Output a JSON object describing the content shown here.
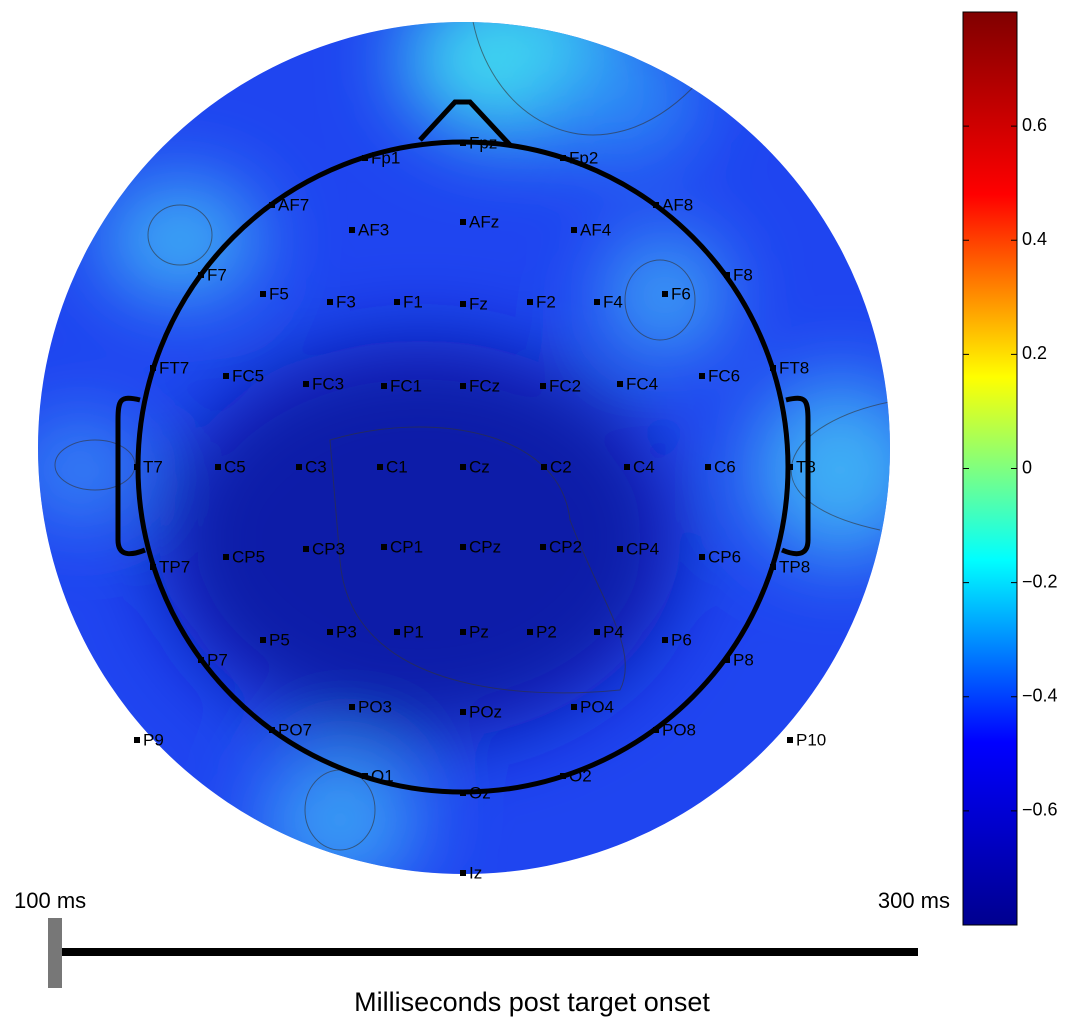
{
  "chart_data": {
    "type": "topomap",
    "electrodes": [
      "Fp1",
      "Fpz",
      "Fp2",
      "AF7",
      "AF3",
      "AFz",
      "AF4",
      "AF8",
      "F7",
      "F5",
      "F3",
      "F1",
      "Fz",
      "F2",
      "F4",
      "F6",
      "F8",
      "FT7",
      "FC5",
      "FC3",
      "FC1",
      "FCz",
      "FC2",
      "FC4",
      "FC6",
      "FT8",
      "T7",
      "C5",
      "C3",
      "C1",
      "Cz",
      "C2",
      "C4",
      "C6",
      "T8",
      "TP7",
      "CP5",
      "CP3",
      "CP1",
      "CPz",
      "CP2",
      "CP4",
      "CP6",
      "TP8",
      "P7",
      "P5",
      "P3",
      "P1",
      "Pz",
      "P2",
      "P4",
      "P6",
      "P8",
      "P9",
      "PO7",
      "PO3",
      "POz",
      "PO4",
      "PO8",
      "P10",
      "O1",
      "Oz",
      "O2",
      "Iz"
    ],
    "clim": [
      -0.8,
      0.8
    ],
    "cticks": [
      0.6,
      0.4,
      0.2,
      0,
      {
        "value": -0.2,
        "label": "−0.2"
      },
      {
        "value": -0.4,
        "label": "−0.4"
      },
      {
        "value": -0.6,
        "label": "−0.6"
      }
    ],
    "colormap": [
      "#00008f",
      "#0000ff",
      "#00ffff",
      "#ffff00",
      "#ff0000",
      "#800000"
    ],
    "time_start": "100 ms",
    "time_end": "300 ms",
    "xlabel": "Milliseconds post target onset"
  }
}
